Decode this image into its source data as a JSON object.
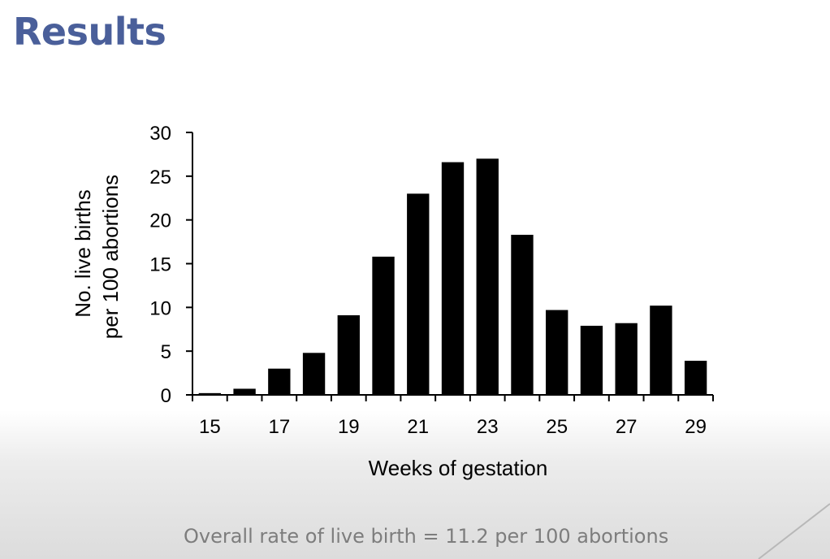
{
  "slide": {
    "title": "Results",
    "footnote": "Overall rate of live birth = 11.2 per 100 abortions"
  },
  "colors": {
    "title": "#4a5f9a",
    "bars": "#000000",
    "footnote": "#7d7d7d"
  },
  "chart_data": {
    "type": "bar",
    "title": "",
    "xlabel": "Weeks of gestation",
    "ylabel_lines": [
      "No. live births",
      "per 100 abortions"
    ],
    "categories": [
      15,
      16,
      17,
      18,
      19,
      20,
      21,
      22,
      23,
      24,
      25,
      26,
      27,
      28,
      29
    ],
    "values": [
      0.2,
      0.7,
      3.0,
      4.8,
      9.1,
      15.8,
      23.0,
      26.6,
      27.0,
      18.3,
      9.7,
      7.9,
      8.2,
      10.2,
      3.9
    ],
    "x_tick_labels": [
      "15",
      "17",
      "19",
      "21",
      "23",
      "25",
      "27",
      "29"
    ],
    "y_ticks": [
      0,
      5,
      10,
      15,
      20,
      25,
      30
    ],
    "ylim": [
      0,
      30
    ],
    "grid": false,
    "legend": "none"
  }
}
